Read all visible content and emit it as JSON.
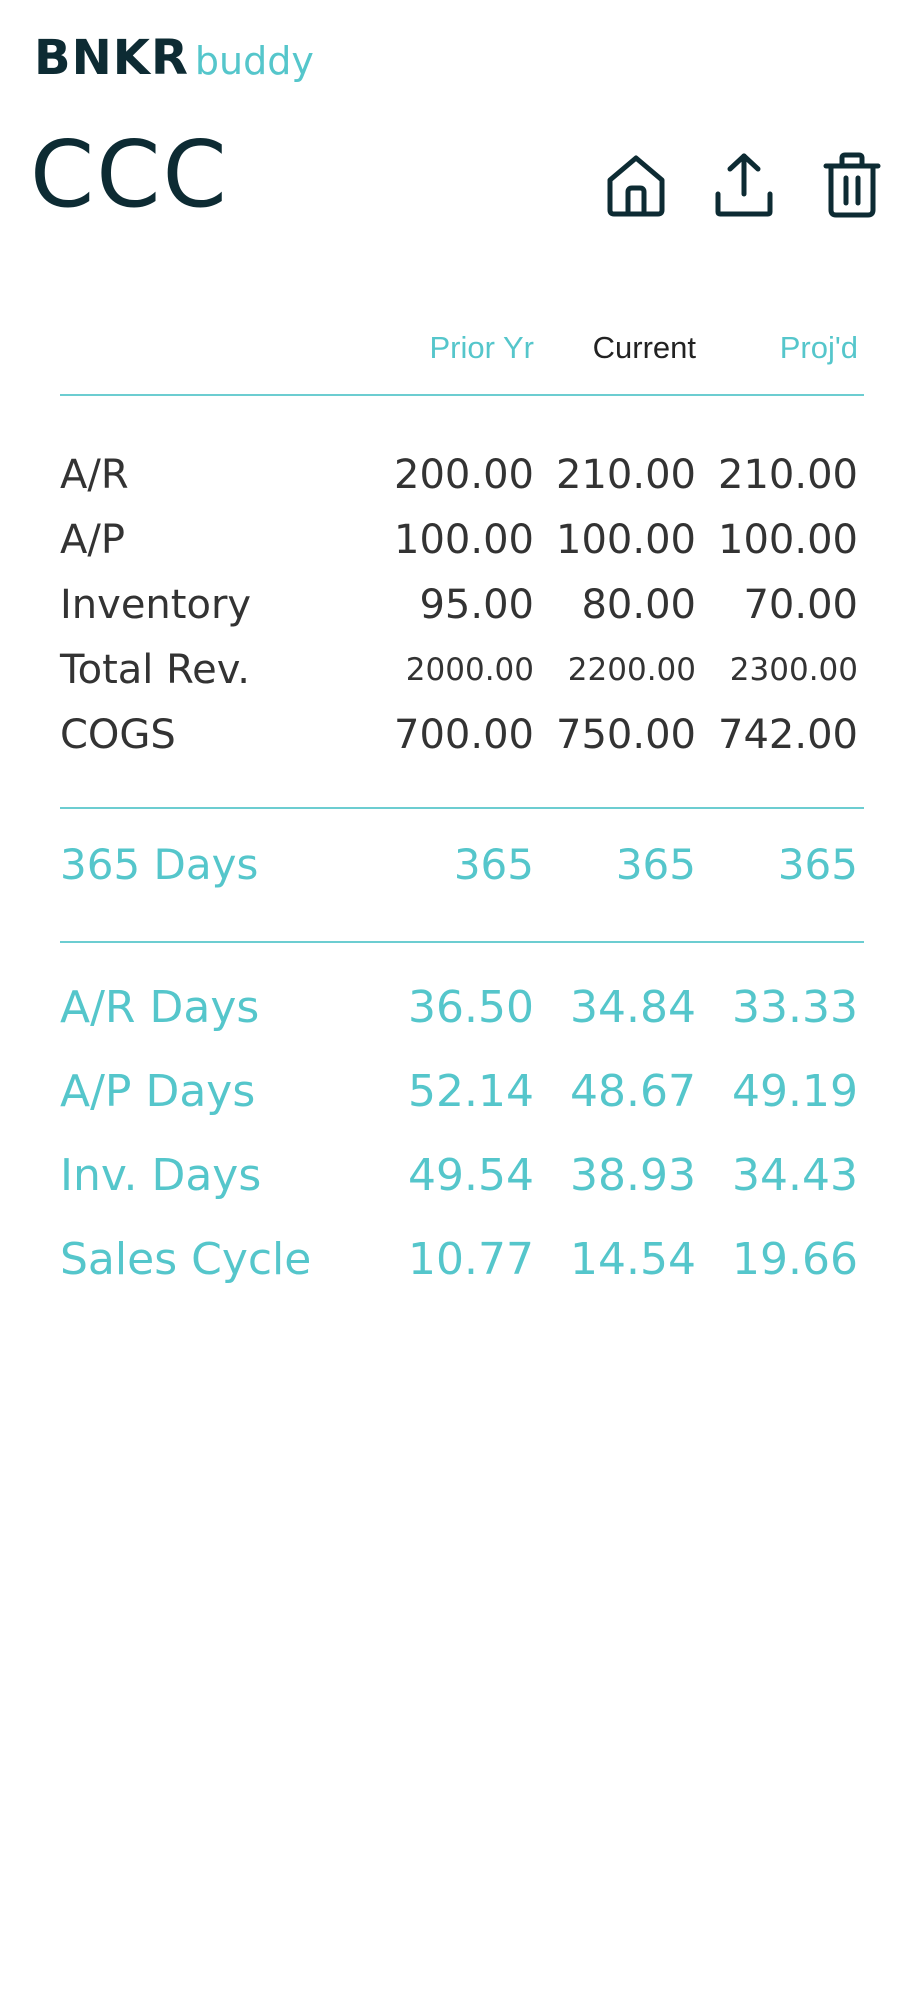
{
  "brand": {
    "main": "BNKR",
    "sub": "buddy"
  },
  "page": {
    "title": "CCC"
  },
  "toolbar": {
    "home_icon": "home-icon",
    "share_icon": "share-icon",
    "delete_icon": "trash-icon"
  },
  "table": {
    "headers": [
      "Prior Yr",
      "Current",
      "Proj'd"
    ],
    "rows": [
      {
        "label": "A/R",
        "values": [
          "200.00",
          "210.00",
          "210.00"
        ]
      },
      {
        "label": "A/P",
        "values": [
          "100.00",
          "100.00",
          "100.00"
        ]
      },
      {
        "label": "Inventory",
        "values": [
          "95.00",
          "80.00",
          "70.00"
        ]
      },
      {
        "label": "Total Rev.",
        "values": [
          "2000.00",
          "2200.00",
          "2300.00"
        ]
      },
      {
        "label": "COGS",
        "values": [
          "700.00",
          "750.00",
          "742.00"
        ]
      }
    ],
    "days_row": {
      "label": "365 Days",
      "values": [
        "365",
        "365",
        "365"
      ]
    },
    "results": [
      {
        "label": "A/R Days",
        "values": [
          "36.50",
          "34.84",
          "33.33"
        ]
      },
      {
        "label": "A/P Days",
        "values": [
          "52.14",
          "48.67",
          "49.19"
        ]
      },
      {
        "label": "Inv. Days",
        "values": [
          "49.54",
          "38.93",
          "34.43"
        ]
      },
      {
        "label": "Sales Cycle",
        "values": [
          "10.77",
          "14.54",
          "19.66"
        ]
      }
    ]
  },
  "colors": {
    "brand_dark": "#0d2b33",
    "accent": "#55c6cb",
    "text": "#333333"
  }
}
